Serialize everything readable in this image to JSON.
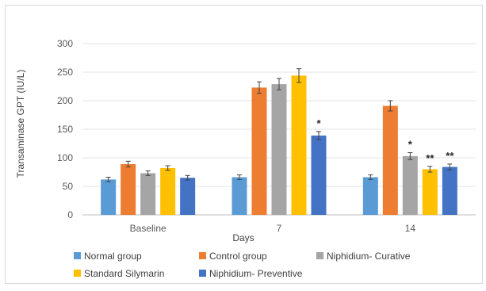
{
  "chart_data": {
    "type": "bar",
    "title": "",
    "xlabel": "Days",
    "ylabel": "Transaminase GPT (IU/L)",
    "ylim": [
      0,
      300
    ],
    "yticks": [
      0,
      50,
      100,
      150,
      200,
      250,
      300
    ],
    "grid": true,
    "legend_position": "bottom",
    "categories": [
      "Baseline",
      "7",
      "14"
    ],
    "series": [
      {
        "name": "Normal group",
        "color": "#5b9bd5",
        "values": [
          62,
          66,
          66
        ],
        "errors": [
          4,
          4,
          4
        ],
        "annotations": [
          "",
          "",
          ""
        ]
      },
      {
        "name": "Control group",
        "color": "#ed7d31",
        "values": [
          89,
          223,
          191
        ],
        "errors": [
          5,
          10,
          9
        ],
        "annotations": [
          "",
          "",
          ""
        ]
      },
      {
        "name": "Niphidium- Curative",
        "color": "#a5a5a5",
        "values": [
          73,
          229,
          103
        ],
        "errors": [
          4,
          10,
          6
        ],
        "annotations": [
          "",
          "",
          "*"
        ]
      },
      {
        "name": "Standard Silymarin",
        "color": "#ffc000",
        "values": [
          82,
          244,
          80
        ],
        "errors": [
          4,
          12,
          5
        ],
        "annotations": [
          "",
          "",
          "**"
        ]
      },
      {
        "name": "Niphidium- Preventive",
        "color": "#4472c4",
        "values": [
          65,
          139,
          84
        ],
        "errors": [
          4,
          7,
          5
        ],
        "annotations": [
          "",
          "*",
          "**"
        ]
      }
    ]
  }
}
